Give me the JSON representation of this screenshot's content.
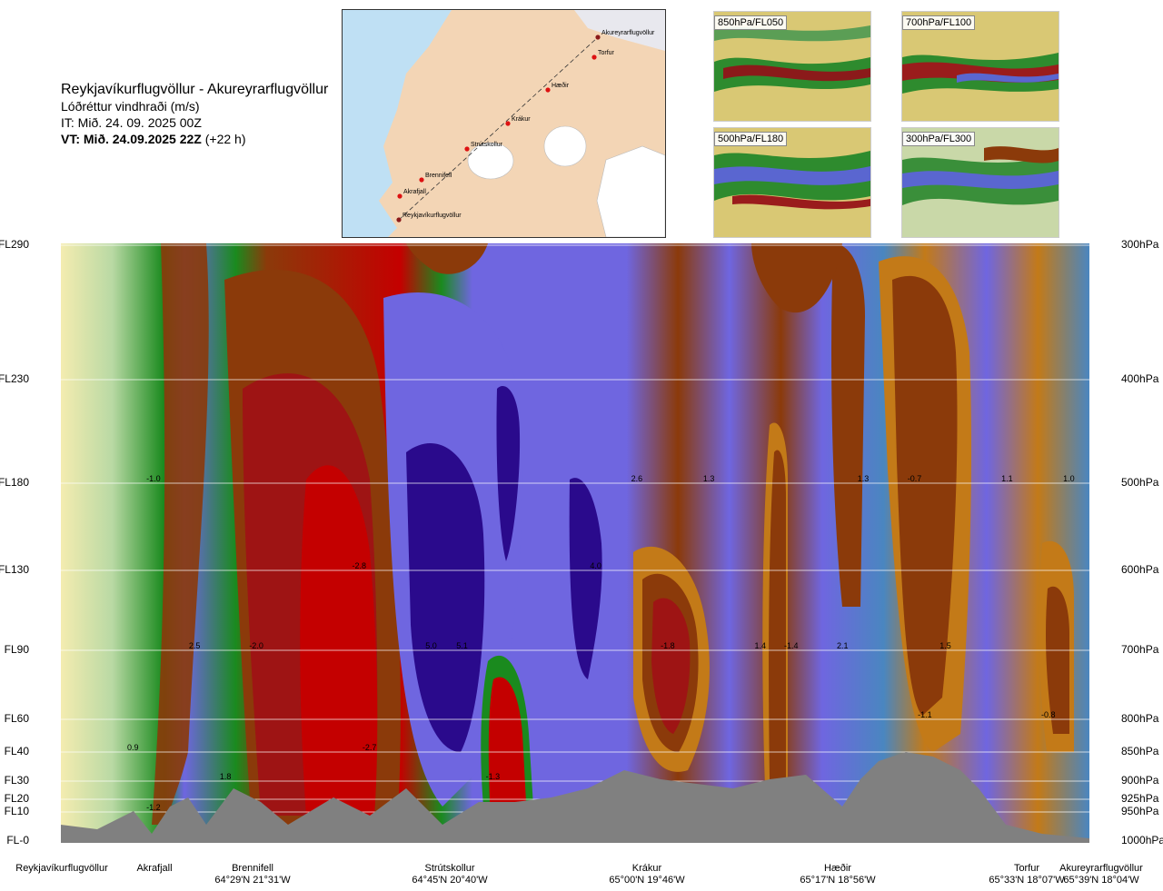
{
  "header": {
    "route": "Reykjavíkurflugvöllur - Akureyrarflugvöllur",
    "variable": "Lóðréttur vindhraði (m/s)",
    "issue_time": "IT: Mið. 24. 09. 2025 00Z",
    "valid_time": "VT: Mið. 24.09.2025 22Z",
    "lead": "(+22 h)"
  },
  "map": {
    "points": [
      {
        "name": "Akureyrarflugvöllur"
      },
      {
        "name": "Torfur"
      },
      {
        "name": "Hæðir"
      },
      {
        "name": "Krákur"
      },
      {
        "name": "Strútskollur"
      },
      {
        "name": "Brennifell"
      },
      {
        "name": "Akrafjall"
      },
      {
        "name": "Reykjavíkurflugvöllur"
      }
    ]
  },
  "thumbnails": [
    {
      "label": "850hPa/FL050"
    },
    {
      "label": "700hPa/FL100"
    },
    {
      "label": "500hPa/FL180"
    },
    {
      "label": "300hPa/FL300"
    }
  ],
  "chart_data": {
    "type": "heatmap",
    "left_labels": [
      "FL290",
      "FL230",
      "FL180",
      "FL130",
      "FL90",
      "FL60",
      "FL40",
      "FL30",
      "FL20",
      "FL10",
      "FL-0"
    ],
    "right_labels": [
      "300hPa",
      "400hPa",
      "500hPa",
      "600hPa",
      "700hPa",
      "800hPa",
      "850hPa",
      "900hPa",
      "925hPa",
      "950hPa",
      "1000hPa"
    ],
    "pressure_levels": [
      300,
      400,
      500,
      600,
      700,
      800,
      850,
      900,
      925,
      950,
      1000
    ],
    "stations": [
      {
        "name": "Reykjavíkurflugvöllur",
        "coord": ""
      },
      {
        "name": "Akrafjall",
        "coord": ""
      },
      {
        "name": "Brennifell",
        "coord": "64°29'N 21°31'W"
      },
      {
        "name": "Strútskollur",
        "coord": "64°45'N 20°40'W"
      },
      {
        "name": "Krákur",
        "coord": "65°00'N 19°46'W"
      },
      {
        "name": "Hæðir",
        "coord": "65°17'N 18°56'W"
      },
      {
        "name": "Torfur",
        "coord": "65°33'N 18°07'W"
      },
      {
        "name": "Akureyrarflugvöllur",
        "coord": "65°39'N 18°04'W"
      }
    ],
    "value_labels": [
      {
        "text": "-1.0",
        "pos": 0.09,
        "level": 500
      },
      {
        "text": "1.1",
        "pos": 0.92,
        "level": 500
      },
      {
        "text": "1.0",
        "pos": 0.98,
        "level": 500
      },
      {
        "text": "2.6",
        "pos": 0.56,
        "level": 500
      },
      {
        "text": "1.3",
        "pos": 0.63,
        "level": 500
      },
      {
        "text": "1.3",
        "pos": 0.78,
        "level": 500
      },
      {
        "text": "-0.7",
        "pos": 0.83,
        "level": 500
      },
      {
        "text": "-2.8",
        "pos": 0.29,
        "level": 600
      },
      {
        "text": "4.0",
        "pos": 0.52,
        "level": 600
      },
      {
        "text": "2.5",
        "pos": 0.13,
        "level": 700
      },
      {
        "text": "-2.0",
        "pos": 0.19,
        "level": 700
      },
      {
        "text": "5.0",
        "pos": 0.36,
        "level": 700
      },
      {
        "text": "5.1",
        "pos": 0.39,
        "level": 700
      },
      {
        "text": "-1.8",
        "pos": 0.59,
        "level": 700
      },
      {
        "text": "1.4",
        "pos": 0.68,
        "level": 700
      },
      {
        "text": "-1.4",
        "pos": 0.71,
        "level": 700
      },
      {
        "text": "2.1",
        "pos": 0.76,
        "level": 700
      },
      {
        "text": "1.5",
        "pos": 0.86,
        "level": 700
      },
      {
        "text": "-1.1",
        "pos": 0.84,
        "level": 800
      },
      {
        "text": "-0.8",
        "pos": 0.96,
        "level": 800
      },
      {
        "text": "0.9",
        "pos": 0.07,
        "level": 850
      },
      {
        "text": "-2.7",
        "pos": 0.3,
        "level": 850
      },
      {
        "text": "1.8",
        "pos": 0.16,
        "level": 900
      },
      {
        "text": "-1.3",
        "pos": 0.42,
        "level": 900
      },
      {
        "text": "-1.2",
        "pos": 0.09,
        "level": 950
      }
    ],
    "colors": {
      "strong_down": "#7a1414",
      "down": "#c40000",
      "moderate_down": "#8b3a0a",
      "weak_down": "#c37a18",
      "slight_down": "#e8b21e",
      "near_zero": "#f4ecb0",
      "slight_up": "#b9d9a4",
      "weak_up": "#5fae55",
      "moderate_up": "#1a8a1e",
      "up": "#4a86c0",
      "strong_up": "#6f66e0",
      "very_strong_up": "#2a0a8c",
      "terrain": "#808080"
    }
  }
}
